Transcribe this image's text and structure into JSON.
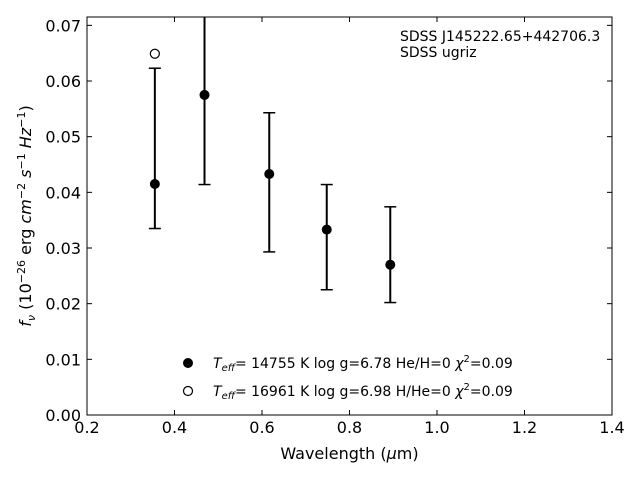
{
  "chart_data": {
    "type": "scatter",
    "annotation": [
      "SDSS J145222.65+442706.3",
      "SDSS ugriz"
    ],
    "xlabel": {
      "pre": "Wavelength (",
      "mu": "μ",
      "post": "m)"
    },
    "ylabel": {
      "f": "f",
      "nu": "ν",
      "open": " (10",
      "e1": "−26",
      "unit": " erg ",
      "cm": "cm",
      "e2": "−2",
      "s": " s",
      "e3": "−1",
      "Hz": " Hz",
      "e4": "−1",
      "close": ")"
    },
    "xlim": [
      0.2,
      1.4
    ],
    "ylim": [
      0.0,
      0.0715
    ],
    "xticks": [
      "0.2",
      "0.4",
      "0.6",
      "0.8",
      "1.0",
      "1.2",
      "1.4"
    ],
    "yticks": [
      "0.00",
      "0.01",
      "0.02",
      "0.03",
      "0.04",
      "0.05",
      "0.06",
      "0.07"
    ],
    "xtick_values": [
      0.2,
      0.4,
      0.6,
      0.8,
      1.0,
      1.2,
      1.4
    ],
    "ytick_values": [
      0.0,
      0.01,
      0.02,
      0.03,
      0.04,
      0.05,
      0.06,
      0.07
    ],
    "series": [
      {
        "marker": "filled-circle",
        "x": [
          0.3551,
          0.4686,
          0.6166,
          0.748,
          0.8932
        ],
        "y": [
          0.0415,
          0.0575,
          0.0433,
          0.0333,
          0.027
        ],
        "yerr_low": [
          0.0335,
          0.0414,
          0.0293,
          0.0225,
          0.0202
        ],
        "yerr_high": [
          0.0623,
          0.0715,
          0.0543,
          0.0414,
          0.0374
        ],
        "legend": {
          "T": "T",
          "eff": "eff",
          "rest": "= 14755 K  log g=6.78  He/H=0  ",
          "chi": "χ",
          "two": "2",
          "val": "=0.09"
        }
      },
      {
        "marker": "open-circle",
        "x": [
          0.3551
        ],
        "y": [
          0.0649
        ],
        "legend": {
          "T": "T",
          "eff": "eff",
          "rest": "= 16961 K  log g=6.98  H/He=0  ",
          "chi": "χ",
          "two": "2",
          "val": "=0.09"
        }
      }
    ],
    "legend_position": "lower-center",
    "grid": false
  }
}
